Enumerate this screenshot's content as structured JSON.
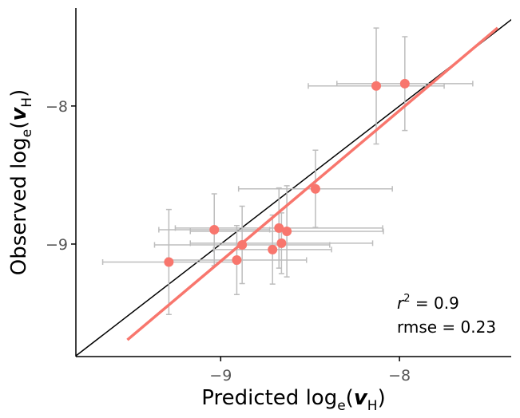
{
  "chart_data": {
    "type": "scatter",
    "x_label_parts": [
      {
        "text": "Predicted log"
      },
      {
        "text": "e",
        "sub": true
      },
      {
        "text": "("
      },
      {
        "text": "v",
        "italic": true
      },
      {
        "text": "H",
        "sub": true
      },
      {
        "text": ")"
      }
    ],
    "y_label_parts": [
      {
        "text": "Observed log"
      },
      {
        "text": "e",
        "sub": true
      },
      {
        "text": "("
      },
      {
        "text": "v",
        "italic": true
      },
      {
        "text": "H",
        "sub": true
      },
      {
        "text": ")"
      }
    ],
    "xlim": [
      -9.81,
      -7.375
    ],
    "ylim": [
      -9.815,
      -7.29
    ],
    "xticks": [
      {
        "value": -9,
        "label": "−9"
      },
      {
        "value": -8,
        "label": "−8"
      }
    ],
    "yticks": [
      {
        "value": -9,
        "label": "−9"
      },
      {
        "value": -8,
        "label": "−8"
      }
    ],
    "point_color": "#f8766d",
    "error_color": "#bdbdbd",
    "identity_color": "#000000",
    "x": [
      -9.29,
      -9.036,
      -8.91,
      -8.88,
      -8.71,
      -8.674,
      -8.66,
      -8.63,
      -8.47,
      -8.13,
      -7.97
    ],
    "y": [
      -9.13,
      -8.896,
      -9.116,
      -9.006,
      -9.04,
      -8.884,
      -8.994,
      -8.908,
      -8.6,
      -7.855,
      -7.838
    ],
    "xerr": [
      0.37,
      0.31,
      0.39,
      0.49,
      0.33,
      0.58,
      0.51,
      0.54,
      0.43,
      0.38,
      0.38
    ],
    "yerr": [
      0.38,
      0.26,
      0.25,
      0.28,
      0.25,
      0.29,
      0.22,
      0.33,
      0.28,
      0.42,
      0.34
    ],
    "fit": {
      "color": "#f8766d",
      "x": [
        -9.522,
        -7.451
      ],
      "y": [
        -9.694,
        -7.434
      ]
    },
    "annotation": {
      "r": "r",
      "r_sup": "2",
      "r_value": " = 0.9",
      "rmse": "rmse = 0.23"
    }
  }
}
